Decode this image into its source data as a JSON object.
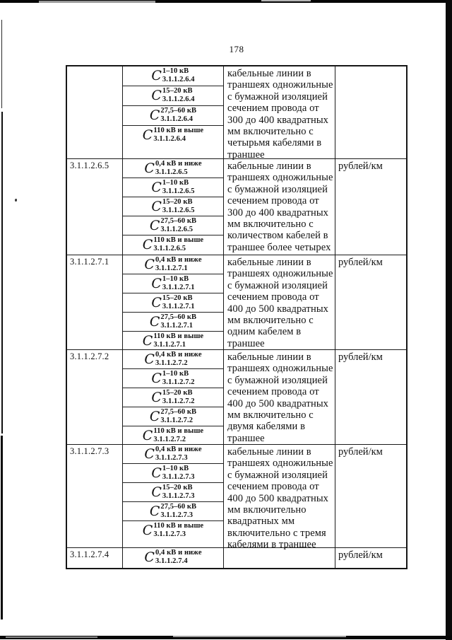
{
  "page": {
    "number": "178"
  },
  "table": {
    "symbol": "C",
    "groups": [
      {
        "code": "",
        "formulas": [
          {
            "sup": "1–10 кВ",
            "sub": "3.1.1.2.6.4"
          },
          {
            "sup": "15–20 кВ",
            "sub": "3.1.1.2.6.4"
          },
          {
            "sup": "27,5–60 кВ",
            "sub": "3.1.1.2.6.4"
          },
          {
            "sup": "110 кВ и выше",
            "sub": "3.1.1.2.6.4"
          }
        ],
        "description": "кабельные линии в\nтраншеях одножильные\nс бумажной изоляцией\nсечением провода от\n300 до 400 квадратных\nмм включительно с\nчетырьмя кабелями в\nтраншее",
        "unit": ""
      },
      {
        "code": "3.1.1.2.6.5",
        "formulas": [
          {
            "sup": "0,4 кВ и ниже",
            "sub": "3.1.1.2.6.5"
          },
          {
            "sup": "1–10 кВ",
            "sub": "3.1.1.2.6.5"
          },
          {
            "sup": "15–20 кВ",
            "sub": "3.1.1.2.6.5"
          },
          {
            "sup": "27,5–60 кВ",
            "sub": "3.1.1.2.6.5"
          },
          {
            "sup": "110 кВ и выше",
            "sub": "3.1.1.2.6.5"
          }
        ],
        "description": "кабельные линии в\nтраншеях одножильные\nс бумажной изоляцией\nсечением провода от\n300 до 400 квадратных\nмм включительно с\nколичеством кабелей в\nтраншее более четырех",
        "unit": "рублей/км"
      },
      {
        "code": "3.1.1.2.7.1",
        "formulas": [
          {
            "sup": "0,4 кВ и ниже",
            "sub": "3.1.1.2.7.1"
          },
          {
            "sup": "1–10 кВ",
            "sub": "3.1.1.2.7.1"
          },
          {
            "sup": "15–20 кВ",
            "sub": "3.1.1.2.7.1"
          },
          {
            "sup": "27,5–60 кВ",
            "sub": "3.1.1.2.7.1"
          },
          {
            "sup": "110 кВ и выше",
            "sub": "3.1.1.2.7.1"
          }
        ],
        "description": "кабельные линии в\nтраншеях одножильные\nс бумажной изоляцией\nсечением провода от\n400 до 500 квадратных\nмм включительно с\nодним кабелем в\nтраншее",
        "unit": "рублей/км"
      },
      {
        "code": "3.1.1.2.7.2",
        "formulas": [
          {
            "sup": "0,4 кВ и ниже",
            "sub": "3.1.1.2.7.2"
          },
          {
            "sup": "1–10 кВ",
            "sub": "3.1.1.2.7.2"
          },
          {
            "sup": "15–20 кВ",
            "sub": "3.1.1.2.7.2"
          },
          {
            "sup": "27,5–60 кВ",
            "sub": "3.1.1.2.7.2"
          },
          {
            "sup": "110 кВ и выше",
            "sub": "3.1.1.2.7.2"
          }
        ],
        "description": "кабельные линии в\nтраншеях одножильные\nс бумажной изоляцией\nсечением провода от\n400 до 500 квадратных\nмм включительно с\nдвумя кабелями в\nтраншее",
        "unit": "рублей/км"
      },
      {
        "code": "3.1.1.2.7.3",
        "formulas": [
          {
            "sup": "0,4 кВ и ниже",
            "sub": "3.1.1.2.7.3"
          },
          {
            "sup": "1–10 кВ",
            "sub": "3.1.1.2.7.3"
          },
          {
            "sup": "15–20 кВ",
            "sub": "3.1.1.2.7.3"
          },
          {
            "sup": "27,5–60 кВ",
            "sub": "3.1.1.2.7.3"
          },
          {
            "sup": "110 кВ и выше",
            "sub": "3.1.1.2.7.3"
          }
        ],
        "description": "кабельные линии в\nтраншеях одножильные\nс бумажной изоляцией\nсечением провода от\n400 до 500 квадратных\nмм включительно\nквадратных мм\nвключительно с тремя\nкабелями в траншее",
        "unit": "рублей/км"
      },
      {
        "code": "3.1.1.2.7.4",
        "formulas": [
          {
            "sup": "0,4 кВ и ниже",
            "sub": "3.1.1.2.7.4"
          }
        ],
        "description": "",
        "unit": "рублей/км"
      }
    ]
  }
}
